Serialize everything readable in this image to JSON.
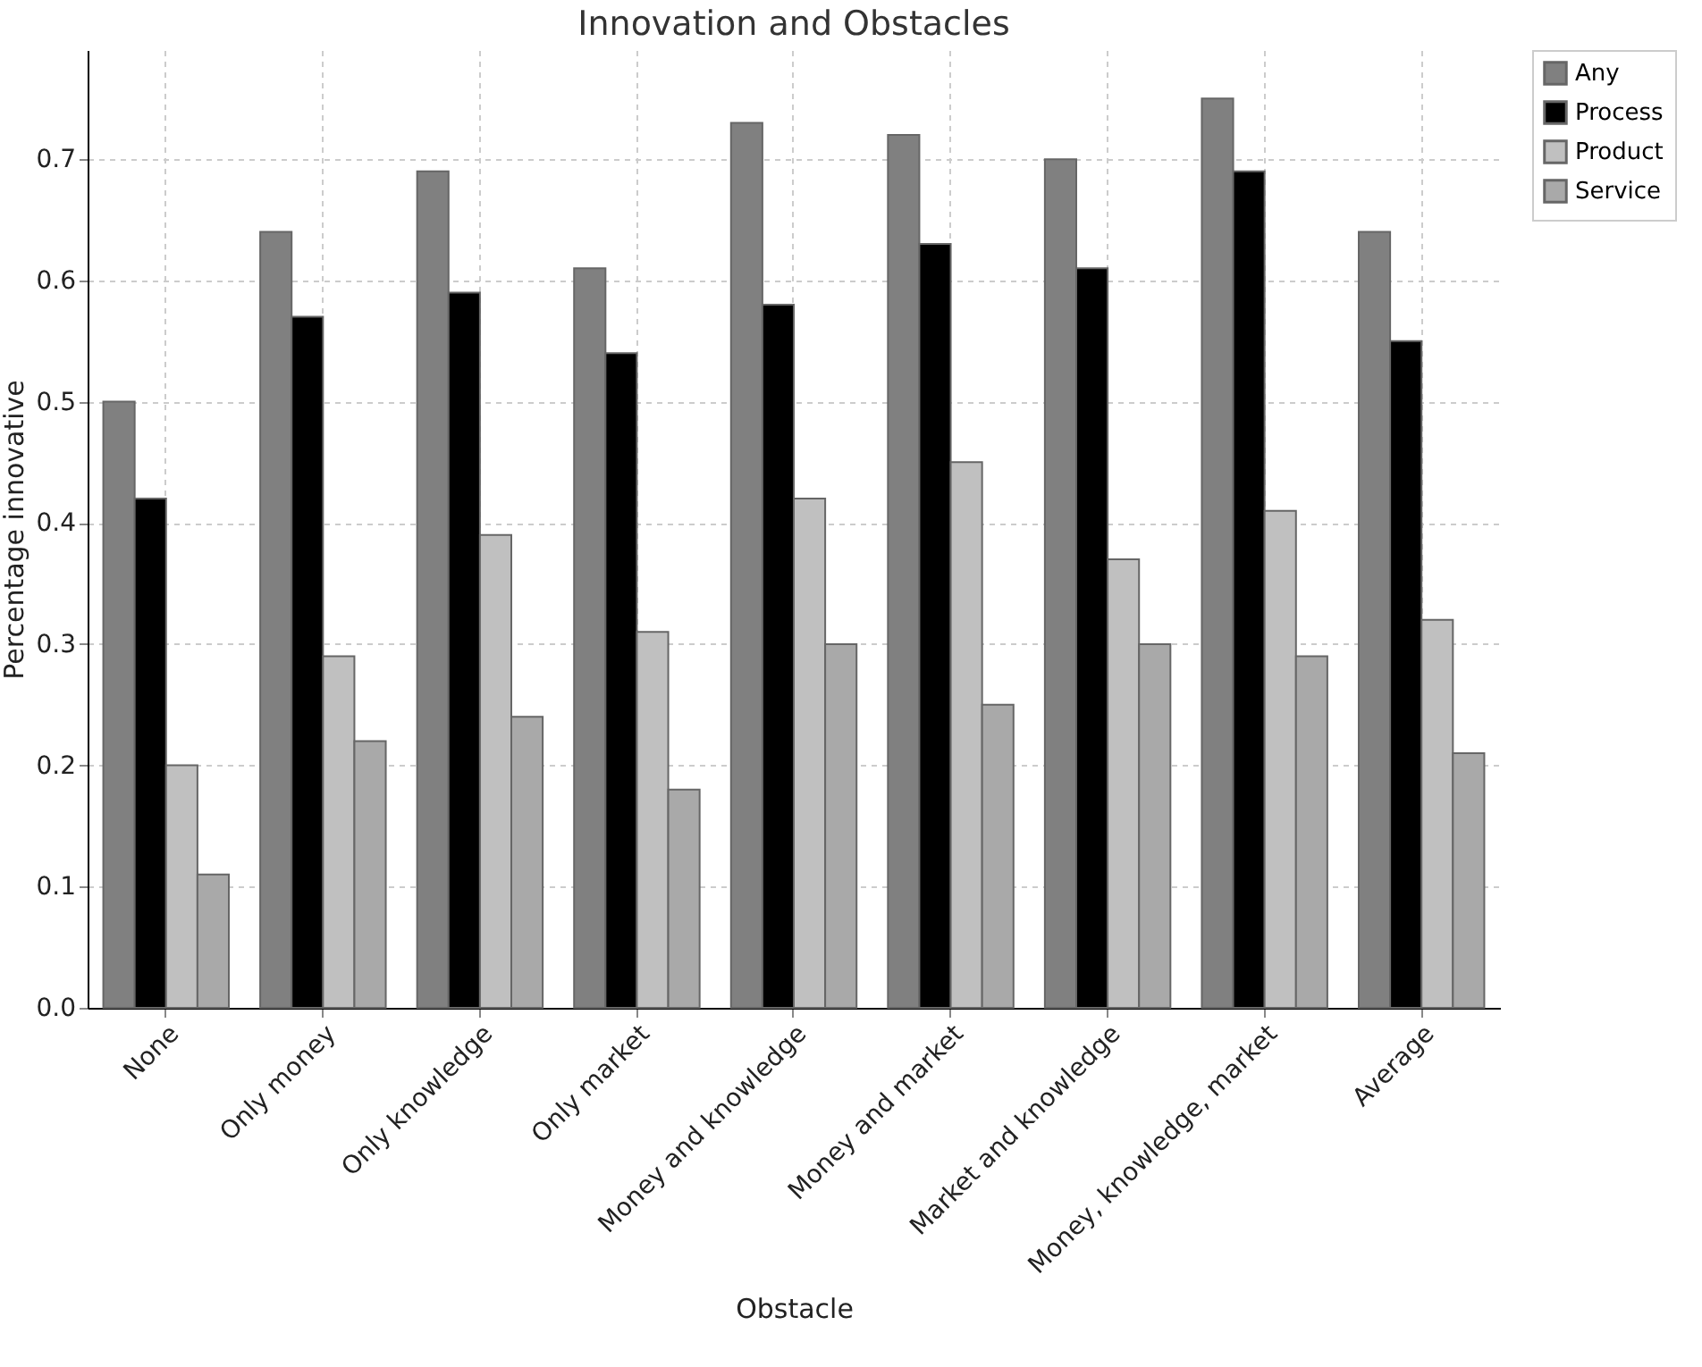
{
  "chart_data": {
    "type": "bar",
    "title": "Innovation and Obstacles",
    "xlabel": "Obstacle",
    "ylabel": "Percentage innovative",
    "categories": [
      "None",
      "Only money",
      "Only knowledge",
      "Only market",
      "Money and knowledge",
      "Money and market",
      "Market and knowledge",
      "Money, knowledge, market",
      "Average"
    ],
    "series": [
      {
        "name": "Any",
        "color": "#808080",
        "values": [
          0.5,
          0.64,
          0.69,
          0.61,
          0.73,
          0.72,
          0.7,
          0.75,
          0.64
        ]
      },
      {
        "name": "Process",
        "color": "#000000",
        "values": [
          0.42,
          0.57,
          0.59,
          0.54,
          0.58,
          0.63,
          0.61,
          0.69,
          0.55
        ]
      },
      {
        "name": "Product",
        "color": "#c0c0c0",
        "values": [
          0.2,
          0.29,
          0.39,
          0.31,
          0.42,
          0.45,
          0.37,
          0.41,
          0.32
        ]
      },
      {
        "name": "Service",
        "color": "#a9a9a9",
        "values": [
          0.11,
          0.22,
          0.24,
          0.18,
          0.3,
          0.25,
          0.3,
          0.29,
          0.21
        ]
      }
    ],
    "ylim": [
      0,
      0.79
    ],
    "yticks": [
      {
        "value": 0,
        "label": "0.0"
      },
      {
        "value": 0.1,
        "label": "0.1"
      },
      {
        "value": 0.2,
        "label": "0.2"
      },
      {
        "value": 0.3,
        "label": "0.3"
      },
      {
        "value": 0.4,
        "label": "0.4"
      },
      {
        "value": 0.5,
        "label": "0.5"
      },
      {
        "value": 0.6,
        "label": "0.6"
      },
      {
        "value": 0.7,
        "label": "0.7"
      }
    ],
    "grid": true,
    "legend": "top right"
  }
}
